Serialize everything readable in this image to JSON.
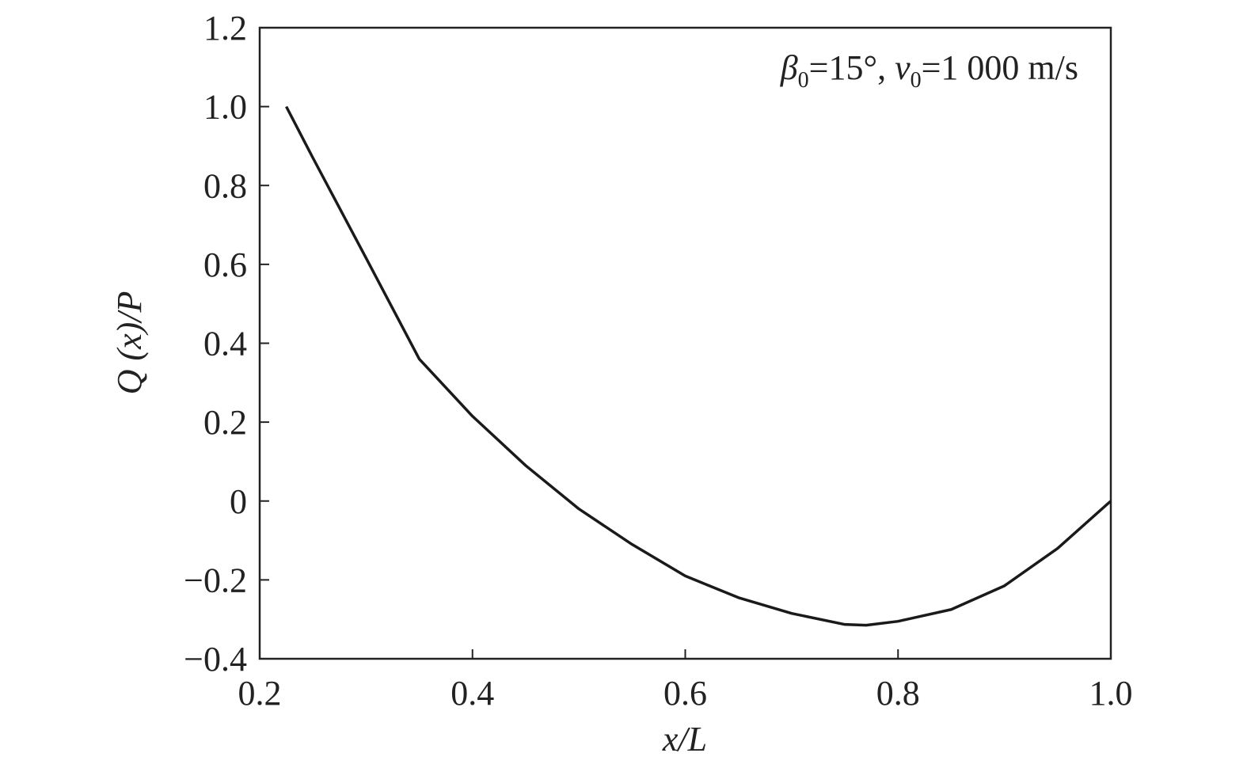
{
  "chart_data": {
    "type": "line",
    "annotation": [
      "β",
      "0",
      "=15°, ",
      "v",
      "0",
      "=1 000 m/s"
    ],
    "xlabel": "x/L",
    "ylabel": "Q (x)/P",
    "x": [
      0.225,
      0.25,
      0.3,
      0.35,
      0.4,
      0.45,
      0.5,
      0.55,
      0.6,
      0.65,
      0.7,
      0.75,
      0.77,
      0.8,
      0.85,
      0.9,
      0.95,
      1.0
    ],
    "values": [
      1.0,
      0.87,
      0.616,
      0.36,
      0.215,
      0.09,
      -0.02,
      -0.11,
      -0.19,
      -0.245,
      -0.285,
      -0.313,
      -0.315,
      -0.305,
      -0.275,
      -0.215,
      -0.12,
      0.0
    ],
    "color": "#1a1a1a",
    "xlim": [
      0.2,
      1.0
    ],
    "ylim": [
      -0.4,
      1.2
    ],
    "xticks": [
      0.2,
      0.4,
      0.6,
      0.8,
      {
        "value": 1.0,
        "label": "1.0"
      }
    ],
    "yticks": [
      {
        "value": -0.4,
        "label": "−0.4"
      },
      {
        "value": -0.2,
        "label": "−0.2"
      },
      0,
      0.2,
      0.4,
      0.6,
      0.8,
      {
        "value": 1.0,
        "label": "1.0"
      },
      1.2
    ]
  }
}
